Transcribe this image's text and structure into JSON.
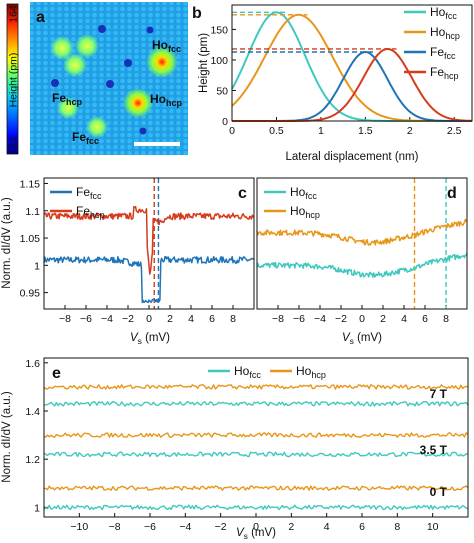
{
  "colors": {
    "ho_fcc": "#3fc9bd",
    "ho_hcp": "#e8961a",
    "fe_fcc": "#1f74b8",
    "fe_hcp": "#d53c1c"
  },
  "panels": {
    "a": {
      "letter": "a",
      "labels": [
        "Ho",
        "fcc",
        "Fe",
        "hcp",
        "Ho",
        "hcp",
        "Fe",
        "fcc"
      ],
      "colorbar": {
        "max": "164",
        "min": "−23",
        "label": "Height (pm)"
      }
    },
    "b": {
      "letter": "b",
      "xlabel": "Lateral displacement (nm)",
      "ylabel": "Height (pm)"
    },
    "c": {
      "letter": "c",
      "ylabel": "Norm. dI/dV (a.u.)",
      "xlabel_main": "V",
      "xlabel_sub": "s",
      "xlabel_unit": " (mV)"
    },
    "d": {
      "letter": "d",
      "xlabel_main": "V",
      "xlabel_sub": "s",
      "xlabel_unit": " (mV)"
    },
    "e": {
      "letter": "e",
      "ylabel": "Norm. dI/dV (a.u.)",
      "xlabel_main": "V",
      "xlabel_sub": "s",
      "xlabel_unit": " (mV)",
      "field_labels": [
        "7 T",
        "3.5 T",
        "0 T"
      ]
    }
  },
  "legend": {
    "ho_fcc": {
      "main": "Ho",
      "sub": "fcc"
    },
    "ho_hcp": {
      "main": "Ho",
      "sub": "hcp"
    },
    "fe_fcc": {
      "main": "Fe",
      "sub": "fcc"
    },
    "fe_hcp": {
      "main": "Fe",
      "sub": "hcp"
    }
  },
  "chart_data": [
    {
      "panel": "b",
      "type": "line",
      "xlim": [
        0,
        2.7
      ],
      "ylim": [
        0,
        190
      ],
      "xticks": [
        "0",
        "0.5",
        "1",
        "1.5",
        "2",
        "2.5"
      ],
      "yticks": [
        "0",
        "50",
        "100",
        "150"
      ],
      "series": [
        {
          "name": "Ho fcc",
          "center": 0.5,
          "peak": 178
        },
        {
          "name": "Ho hcp",
          "center": 0.75,
          "peak": 174
        },
        {
          "name": "Fe fcc",
          "center": 1.5,
          "peak": 113
        },
        {
          "name": "Fe hcp",
          "center": 1.75,
          "peak": 118
        }
      ]
    },
    {
      "panel": "c",
      "type": "line",
      "xlim": [
        -10,
        10
      ],
      "ylim": [
        0.92,
        1.16
      ],
      "xticks": [
        "−8",
        "−6",
        "−4",
        "−2",
        "0",
        "2",
        "4",
        "6",
        "8"
      ],
      "yticks": [
        "0.95",
        "1",
        "1.05",
        "1.1",
        "1.15"
      ],
      "series": [
        {
          "name": "Fe fcc",
          "baseline": 1.01,
          "dip": 0.935
        },
        {
          "name": "Fe hcp",
          "baseline": 1.09,
          "dip": 0.98
        }
      ],
      "markers_mV": [
        0.5,
        0.9
      ]
    },
    {
      "panel": "d",
      "type": "line",
      "xlim": [
        -10,
        10
      ],
      "ylim": [
        0.92,
        1.16
      ],
      "xticks": [
        "−8",
        "−6",
        "−4",
        "−2",
        "0",
        "2",
        "4",
        "6",
        "8"
      ],
      "series": [
        {
          "name": "Ho fcc",
          "baseline": 1.0
        },
        {
          "name": "Ho hcp",
          "baseline": 1.06
        }
      ],
      "markers_mV": [
        5,
        8
      ]
    },
    {
      "panel": "e",
      "type": "line",
      "xlim": [
        -12,
        12
      ],
      "ylim": [
        0.96,
        1.62
      ],
      "xticks": [
        "−10",
        "−8",
        "−6",
        "−4",
        "−2",
        "0",
        "2",
        "4",
        "6",
        "8",
        "10"
      ],
      "yticks": [
        "1",
        "1.2",
        "1.4",
        "1.6"
      ],
      "series": [
        {
          "name": "Ho fcc",
          "levels": [
            1.0,
            1.22,
            1.43
          ]
        },
        {
          "name": "Ho hcp",
          "levels": [
            1.08,
            1.3,
            1.5
          ]
        }
      ]
    }
  ]
}
